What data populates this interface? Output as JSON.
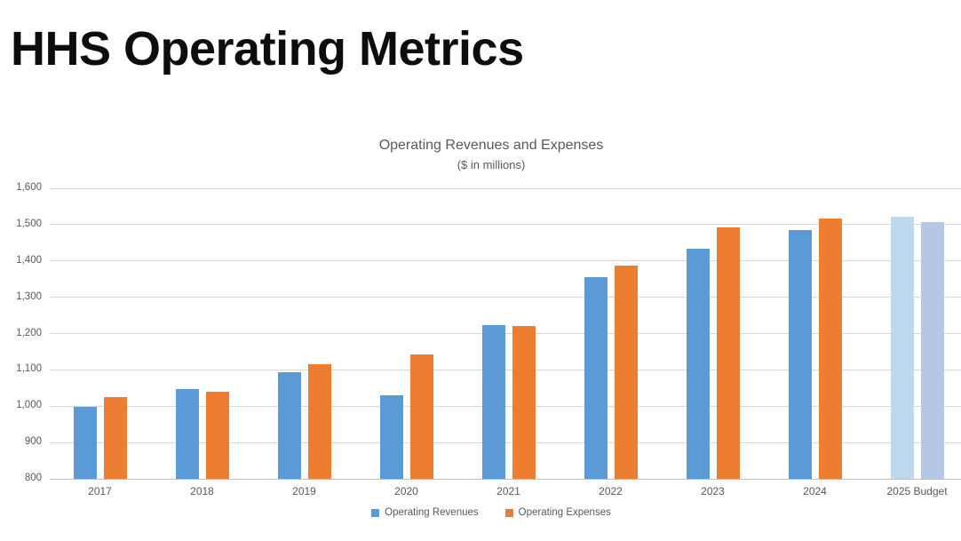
{
  "page": {
    "title": "HHS Operating Metrics"
  },
  "colors": {
    "revenue": "#5B9BD5",
    "expense": "#ED7D31",
    "revenue_budget": "#BDD7EE",
    "expense_budget": "#B4C7E7",
    "gridline": "#D9D9D9",
    "axis_line": "#BFBFBF",
    "axis_text": "#595959"
  },
  "chart_data": {
    "type": "bar",
    "title": "Operating Revenues and Expenses",
    "subtitle": "($ in millions)",
    "categories": [
      "2017",
      "2018",
      "2019",
      "2020",
      "2021",
      "2022",
      "2023",
      "2024",
      "2025 Budget"
    ],
    "series": [
      {
        "name": "Operating Revenues",
        "color": "#5B9BD5",
        "budget_color": "#BDD7EE",
        "values": [
          997,
          1047,
          1093,
          1030,
          1223,
          1356,
          1434,
          1486,
          1521
        ]
      },
      {
        "name": "Operating Expenses",
        "color": "#ED7D31",
        "budget_color": "#B4C7E7",
        "values": [
          1025,
          1040,
          1115,
          1142,
          1220,
          1388,
          1493,
          1516,
          1507
        ]
      }
    ],
    "budget_category_index": 8,
    "ylim": [
      800,
      1600
    ],
    "ytick_step": 100,
    "ytick_labels": [
      "800",
      "900",
      "1,000",
      "1,100",
      "1,200",
      "1,300",
      "1,400",
      "1,500",
      "1,600"
    ],
    "grid": true,
    "legend_position": "bottom"
  }
}
